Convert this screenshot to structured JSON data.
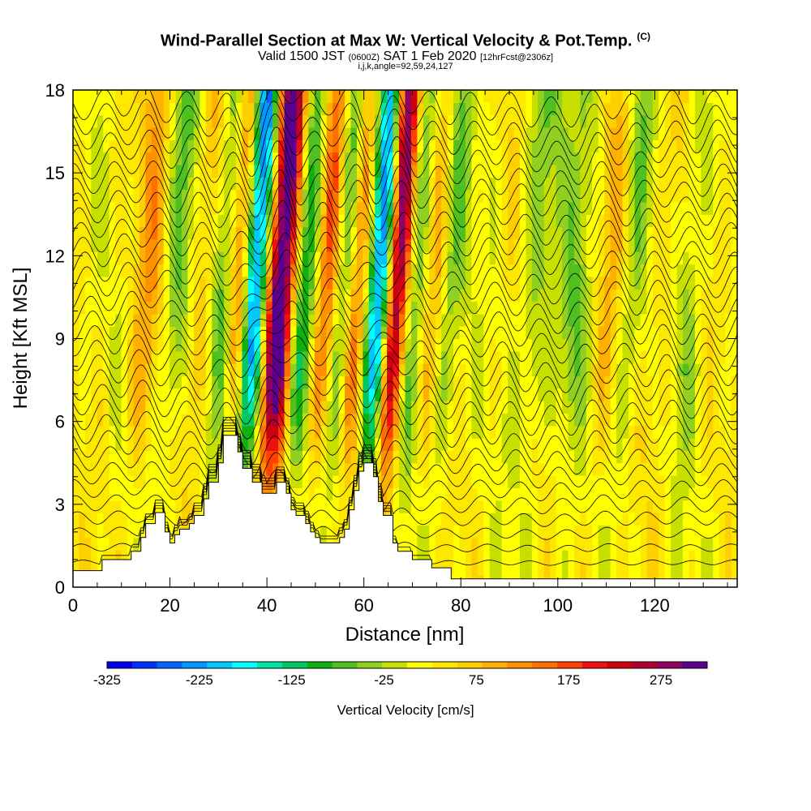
{
  "title": {
    "main": "Wind-Parallel Section at Max W: Vertical Velocity & Pot.Temp.",
    "mark": "(C)",
    "valid_prefix": "Valid 1500 JST",
    "valid_utc": "(0600Z)",
    "valid_date": "SAT 1 Feb 2020",
    "forecast": "[12hrFcst@2306z]",
    "params": "i,j,k,angle=92,59,24,127"
  },
  "chart_data": {
    "type": "heatmap",
    "xlabel": "Distance [nm]",
    "ylabel": "Height [Kft MSL]",
    "xlim": [
      0,
      137
    ],
    "ylim": [
      0,
      18
    ],
    "x_ticks": [
      0,
      20,
      40,
      60,
      80,
      100,
      120
    ],
    "y_ticks": [
      0,
      3,
      6,
      9,
      12,
      15,
      18
    ],
    "colorbar": {
      "label": "Vertical Velocity [cm/s]",
      "range": [
        -325,
        325
      ],
      "tick_values": [
        -325,
        -225,
        -125,
        -25,
        75,
        175,
        275
      ],
      "colors": [
        "#0000f0",
        "#0033ff",
        "#0066ff",
        "#0099ff",
        "#00c8ff",
        "#00ffff",
        "#00e6a0",
        "#00c864",
        "#10b010",
        "#50c020",
        "#90d020",
        "#c8e000",
        "#ffff00",
        "#ffe800",
        "#ffd000",
        "#ffb000",
        "#ff9000",
        "#ff7000",
        "#ff4000",
        "#f01010",
        "#d00010",
        "#b00030",
        "#900060",
        "#5a0090"
      ]
    },
    "terrain": [
      [
        0,
        0.6
      ],
      [
        6,
        0.6
      ],
      [
        6,
        1.0
      ],
      [
        12,
        1.0
      ],
      [
        12,
        1.3
      ],
      [
        14,
        1.3
      ],
      [
        14,
        1.8
      ],
      [
        15,
        1.8
      ],
      [
        15,
        2.3
      ],
      [
        17,
        2.3
      ],
      [
        17,
        2.7
      ],
      [
        19,
        2.7
      ],
      [
        19,
        2.0
      ],
      [
        20,
        2.0
      ],
      [
        20,
        1.6
      ],
      [
        21,
        1.6
      ],
      [
        21,
        1.9
      ],
      [
        22,
        1.9
      ],
      [
        22,
        2.1
      ],
      [
        24,
        2.1
      ],
      [
        24,
        2.3
      ],
      [
        25,
        2.3
      ],
      [
        25,
        2.6
      ],
      [
        27,
        2.6
      ],
      [
        27,
        3.2
      ],
      [
        28,
        3.2
      ],
      [
        28,
        3.8
      ],
      [
        30,
        3.8
      ],
      [
        30,
        4.5
      ],
      [
        31,
        4.5
      ],
      [
        31,
        5.5
      ],
      [
        34,
        5.5
      ],
      [
        34,
        4.9
      ],
      [
        35,
        4.9
      ],
      [
        35,
        4.3
      ],
      [
        37,
        4.3
      ],
      [
        37,
        3.8
      ],
      [
        39,
        3.8
      ],
      [
        39,
        3.4
      ],
      [
        42,
        3.4
      ],
      [
        42,
        3.8
      ],
      [
        44,
        3.8
      ],
      [
        44,
        3.4
      ],
      [
        45,
        3.4
      ],
      [
        45,
        2.8
      ],
      [
        46,
        2.8
      ],
      [
        46,
        2.6
      ],
      [
        48,
        2.6
      ],
      [
        48,
        2.3
      ],
      [
        49,
        2.3
      ],
      [
        49,
        2.0
      ],
      [
        50,
        2.0
      ],
      [
        50,
        1.8
      ],
      [
        51,
        1.8
      ],
      [
        51,
        1.6
      ],
      [
        55,
        1.6
      ],
      [
        55,
        1.8
      ],
      [
        56,
        1.8
      ],
      [
        56,
        2.1
      ],
      [
        57,
        2.1
      ],
      [
        57,
        2.8
      ],
      [
        58,
        2.8
      ],
      [
        58,
        3.5
      ],
      [
        59,
        3.5
      ],
      [
        59,
        4.2
      ],
      [
        60,
        4.2
      ],
      [
        60,
        4.5
      ],
      [
        62,
        4.5
      ],
      [
        62,
        4.0
      ],
      [
        63,
        4.0
      ],
      [
        63,
        3.1
      ],
      [
        64,
        3.1
      ],
      [
        64,
        2.6
      ],
      [
        66,
        2.6
      ],
      [
        66,
        1.6
      ],
      [
        67,
        1.6
      ],
      [
        67,
        1.3
      ],
      [
        70,
        1.3
      ],
      [
        70,
        1.0
      ],
      [
        74,
        1.0
      ],
      [
        74,
        0.7
      ],
      [
        78,
        0.7
      ],
      [
        78,
        0.3
      ],
      [
        137,
        0.3
      ]
    ],
    "features": [
      {
        "kind": "updraft",
        "x": 42,
        "w": 3.2,
        "amp": 340
      },
      {
        "kind": "downdraft",
        "x": 37,
        "w": 2.8,
        "amp": -320
      },
      {
        "kind": "updraft",
        "x": 66,
        "w": 2.8,
        "amp": 330
      },
      {
        "kind": "downdraft",
        "x": 63,
        "w": 2.6,
        "amp": -300
      },
      {
        "kind": "updraft",
        "x": 34,
        "w": 2.2,
        "amp": 150
      },
      {
        "kind": "updraft",
        "x": 52,
        "w": 2.5,
        "amp": 130
      },
      {
        "kind": "updraft",
        "x": 58,
        "w": 2.2,
        "amp": 110
      },
      {
        "kind": "downdraft",
        "x": 47,
        "w": 2.5,
        "amp": -130
      },
      {
        "kind": "downdraft",
        "x": 55,
        "w": 2.5,
        "amp": -110
      },
      {
        "kind": "downdraft",
        "x": 70,
        "w": 3.0,
        "amp": -120
      },
      {
        "kind": "updraft",
        "x": 74,
        "w": 3.0,
        "amp": 90
      },
      {
        "kind": "downdraft",
        "x": 77,
        "w": 3.0,
        "amp": -90
      },
      {
        "kind": "updraft",
        "x": 15,
        "w": 3.5,
        "amp": 70
      },
      {
        "kind": "downdraft",
        "x": 21,
        "w": 3.0,
        "amp": -90
      },
      {
        "kind": "updraft",
        "x": 26,
        "w": 3.0,
        "amp": 70
      },
      {
        "kind": "downdraft",
        "x": 30,
        "w": 2.5,
        "amp": -90
      },
      {
        "kind": "downdraft",
        "x": 95,
        "w": 3.0,
        "amp": -70
      },
      {
        "kind": "downdraft",
        "x": 103,
        "w": 3.0,
        "amp": -70
      },
      {
        "kind": "downdraft",
        "x": 115,
        "w": 3.0,
        "amp": -60
      },
      {
        "kind": "downdraft",
        "x": 126,
        "w": 3.0,
        "amp": -60
      },
      {
        "kind": "updraft",
        "x": 110,
        "w": 3.0,
        "amp": 50
      },
      {
        "kind": "updraft",
        "x": 122,
        "w": 3.0,
        "amp": 50
      }
    ],
    "theta_contour_count": 32
  }
}
